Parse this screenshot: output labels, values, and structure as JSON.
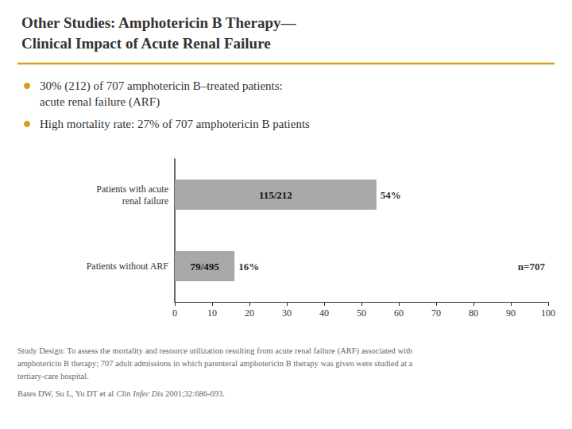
{
  "chart_data": {
    "type": "bar",
    "orientation": "horizontal",
    "title": "Other Studies: Amphotericin B Therapy—\nClinical Impact of Acute Renal Failure",
    "subtitle": [
      "30% (212) of 707 amphotericin B–treated patients:\nacute renal failure (ARF)",
      "High mortality rate: 27% of 707 amphotericin B patients"
    ],
    "categories": [
      "Patients with acute\nrenal failure",
      "Patients without ARF"
    ],
    "values": [
      54,
      16
    ],
    "value_labels": [
      "54%",
      "16%"
    ],
    "data_labels": true,
    "color": "#a8a8a8",
    "annotations": [
      {
        "text": "115/212",
        "category": "Patients with acute\nrenal failure"
      },
      {
        "text": "79/495",
        "category": "Patients without ARF"
      },
      {
        "text": "n=707",
        "category": "Patients without ARF"
      }
    ],
    "xlim": [
      0,
      100
    ],
    "xticks": [
      0,
      10,
      20,
      30,
      40,
      50,
      60,
      70,
      80,
      90,
      100
    ],
    "grid": false,
    "footnotes": [
      "Study Design: To assess the mortality and resource utilization resulting from acute renal failure (ARF) associated with",
      "amphotericin B therapy; 707 adult admissions in which parenteral amphotericin B therapy was given were studied at a",
      "tertiary-care hospital.",
      [
        "Bates DW, Su L, Yu DT et al ",
        "Clin Infec Dis",
        " 2001;32:686-693."
      ]
    ]
  }
}
